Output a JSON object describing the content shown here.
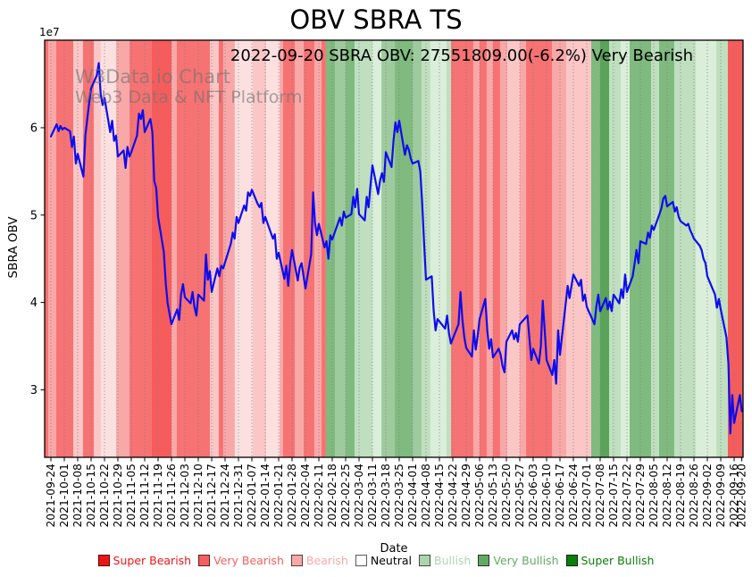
{
  "title": "OBV SBRA TS",
  "subtitle": "2022-09-20 SBRA OBV: 27551809.00(-6.2%) Very Bearish",
  "watermark": {
    "line1": "W3Data.io Chart",
    "line2": "Web3 Data & NFT Platform"
  },
  "y_axis": {
    "label": "SBRA OBV",
    "offset_label": "1e7",
    "ticks": [
      3,
      4,
      5,
      6
    ],
    "range": [
      2.23,
      7.0
    ]
  },
  "x_axis": {
    "label": "Date",
    "first_date": "2021-09-24",
    "tick_labels": [
      "2021-09-24",
      "2021-10-01",
      "2021-10-08",
      "2021-10-15",
      "2021-10-22",
      "2021-10-29",
      "2021-11-05",
      "2021-11-12",
      "2021-11-19",
      "2021-11-26",
      "2021-12-03",
      "2021-12-10",
      "2021-12-17",
      "2021-12-24",
      "2021-12-31",
      "2022-01-07",
      "2022-01-14",
      "2022-01-21",
      "2022-01-28",
      "2022-02-04",
      "2022-02-11",
      "2022-02-18",
      "2022-02-25",
      "2022-03-04",
      "2022-03-11",
      "2022-03-18",
      "2022-03-25",
      "2022-04-01",
      "2022-04-08",
      "2022-04-15",
      "2022-04-22",
      "2022-04-29",
      "2022-05-06",
      "2022-05-13",
      "2022-05-20",
      "2022-05-27",
      "2022-06-03",
      "2022-06-10",
      "2022-06-17",
      "2022-06-24",
      "2022-07-01",
      "2022-07-08",
      "2022-07-15",
      "2022-07-22",
      "2022-07-29",
      "2022-08-05",
      "2022-08-12",
      "2022-08-19",
      "2022-08-26",
      "2022-09-02",
      "2022-09-09",
      "2022-09-16",
      "2022-09-20"
    ]
  },
  "line_color": "#0d0dee",
  "grid_color": "#808080",
  "legend": [
    {
      "key": "super_bearish",
      "label": "Super Bearish",
      "color": "#ed1515",
      "text_color": "#ed1515"
    },
    {
      "key": "very_bearish",
      "label": "Very Bearish",
      "color": "#f55f5f",
      "text_color": "#f55f5f"
    },
    {
      "key": "bearish",
      "label": "Bearish",
      "color": "#f9a8a8",
      "text_color": "#f9a8a8"
    },
    {
      "key": "neutral",
      "label": "Neutral",
      "color": "#ffffff",
      "text_color": "#000000"
    },
    {
      "key": "bullish",
      "label": "Bullish",
      "color": "#aed4ae",
      "text_color": "#aed4ae"
    },
    {
      "key": "very_bullish",
      "label": "Very Bullish",
      "color": "#63a963",
      "text_color": "#63a963"
    },
    {
      "key": "super_bullish",
      "label": "Super Bullish",
      "color": "#0a7d0a",
      "text_color": "#0a7d0a"
    }
  ],
  "band_palette": {
    "vb": "#f77272",
    "vb2": "#f65c5c",
    "b": "#f9a8a8",
    "lp": "#fbc6c6",
    "vlp": "#fce0e0",
    "mg": "#7fba7f",
    "dg": "#5aa35a",
    "lmg": "#9ecb9e",
    "lg": "#bfdfbf",
    "vlg": "#daeeda"
  },
  "sentiment_bands_week_units": [
    [
      -0.47,
      -0.2,
      "vb"
    ],
    [
      -0.2,
      0.4,
      "b"
    ],
    [
      0.4,
      1.67,
      "vb"
    ],
    [
      1.67,
      2.4,
      "lp"
    ],
    [
      2.4,
      3.2,
      "vb"
    ],
    [
      3.2,
      3.73,
      "lp"
    ],
    [
      3.73,
      4.87,
      "vlp"
    ],
    [
      4.87,
      5.87,
      "b"
    ],
    [
      5.87,
      7.53,
      "vb"
    ],
    [
      7.53,
      9.0,
      "vb2"
    ],
    [
      9.0,
      9.4,
      "b"
    ],
    [
      9.4,
      11.87,
      "vb"
    ],
    [
      11.87,
      12.53,
      "lp"
    ],
    [
      12.53,
      12.87,
      "vb"
    ],
    [
      12.87,
      13.73,
      "b"
    ],
    [
      13.73,
      15.07,
      "vlp"
    ],
    [
      15.07,
      16.07,
      "lp"
    ],
    [
      16.07,
      17.07,
      "vlp"
    ],
    [
      17.07,
      17.33,
      "b"
    ],
    [
      17.33,
      18.2,
      "vb"
    ],
    [
      18.2,
      18.87,
      "b"
    ],
    [
      18.87,
      19.67,
      "vb"
    ],
    [
      19.67,
      20.2,
      "b"
    ],
    [
      20.2,
      20.53,
      "vb"
    ],
    [
      20.53,
      21.2,
      "mg"
    ],
    [
      21.2,
      22.0,
      "lmg"
    ],
    [
      22.0,
      22.67,
      "mg"
    ],
    [
      22.67,
      24.0,
      "lg"
    ],
    [
      24.0,
      24.67,
      "vlg"
    ],
    [
      24.67,
      25.67,
      "lmg"
    ],
    [
      25.67,
      27.0,
      "mg"
    ],
    [
      27.0,
      27.67,
      "lmg"
    ],
    [
      27.67,
      28.33,
      "lg"
    ],
    [
      28.33,
      29.53,
      "vlg"
    ],
    [
      29.53,
      29.87,
      "lg"
    ],
    [
      29.87,
      31.53,
      "vb"
    ],
    [
      31.53,
      32.0,
      "b"
    ],
    [
      32.0,
      32.53,
      "vb"
    ],
    [
      32.53,
      33.0,
      "b"
    ],
    [
      33.0,
      33.53,
      "vb"
    ],
    [
      33.53,
      34.07,
      "b"
    ],
    [
      34.07,
      35.0,
      "lp"
    ],
    [
      35.0,
      35.47,
      "b"
    ],
    [
      35.47,
      37.4,
      "vb"
    ],
    [
      37.4,
      38.47,
      "b"
    ],
    [
      38.47,
      40.33,
      "lp"
    ],
    [
      40.33,
      41.0,
      "mg"
    ],
    [
      41.0,
      41.67,
      "dg"
    ],
    [
      41.67,
      42.53,
      "lg"
    ],
    [
      42.53,
      43.2,
      "vlg"
    ],
    [
      43.2,
      44.8,
      "mg"
    ],
    [
      44.8,
      45.4,
      "lg"
    ],
    [
      45.4,
      46.53,
      "mg"
    ],
    [
      46.53,
      48.13,
      "lg"
    ],
    [
      48.13,
      49.67,
      "vlg"
    ],
    [
      49.67,
      50.53,
      "lg"
    ],
    [
      50.53,
      51.67,
      "vb2"
    ]
  ],
  "chart_data": {
    "type": "line",
    "series_name": "SBRA OBV",
    "value_unit": "1e7",
    "title": "OBV SBRA TS",
    "xlabel": "Date",
    "ylabel": "SBRA OBV",
    "ylim": [
      2.23,
      7.0
    ],
    "points": [
      [
        "2021-09-24",
        5.9
      ],
      [
        "2021-09-27",
        6.04
      ],
      [
        "2021-09-28",
        5.96
      ],
      [
        "2021-09-29",
        6.02
      ],
      [
        "2021-09-30",
        5.98
      ],
      [
        "2021-10-01",
        6.0
      ],
      [
        "2021-10-04",
        5.96
      ],
      [
        "2021-10-05",
        5.78
      ],
      [
        "2021-10-06",
        5.9
      ],
      [
        "2021-10-07",
        5.59
      ],
      [
        "2021-10-08",
        5.7
      ],
      [
        "2021-10-11",
        5.44
      ],
      [
        "2021-10-12",
        5.91
      ],
      [
        "2021-10-13",
        6.1
      ],
      [
        "2021-10-14",
        6.29
      ],
      [
        "2021-10-15",
        6.45
      ],
      [
        "2021-10-18",
        6.6
      ],
      [
        "2021-10-19",
        6.74
      ],
      [
        "2021-10-20",
        6.39
      ],
      [
        "2021-10-21",
        6.26
      ],
      [
        "2021-10-22",
        6.34
      ],
      [
        "2021-10-25",
        5.95
      ],
      [
        "2021-10-26",
        6.08
      ],
      [
        "2021-10-27",
        5.85
      ],
      [
        "2021-10-28",
        5.91
      ],
      [
        "2021-10-29",
        5.67
      ],
      [
        "2021-11-01",
        5.74
      ],
      [
        "2021-11-02",
        5.54
      ],
      [
        "2021-11-03",
        5.78
      ],
      [
        "2021-11-04",
        5.67
      ],
      [
        "2021-11-05",
        5.72
      ],
      [
        "2021-11-08",
        5.91
      ],
      [
        "2021-11-09",
        6.16
      ],
      [
        "2021-11-10",
        6.1
      ],
      [
        "2021-11-11",
        6.2
      ],
      [
        "2021-11-12",
        5.95
      ],
      [
        "2021-11-15",
        6.1
      ],
      [
        "2021-11-16",
        5.95
      ],
      [
        "2021-11-17",
        5.39
      ],
      [
        "2021-11-18",
        5.31
      ],
      [
        "2021-11-19",
        4.98
      ],
      [
        "2021-11-22",
        4.58
      ],
      [
        "2021-11-23",
        4.22
      ],
      [
        "2021-11-24",
        3.99
      ],
      [
        "2021-11-26",
        3.75
      ],
      [
        "2021-11-29",
        3.92
      ],
      [
        "2021-11-30",
        3.8
      ],
      [
        "2021-12-01",
        4.09
      ],
      [
        "2021-12-02",
        4.21
      ],
      [
        "2021-12-03",
        4.06
      ],
      [
        "2021-12-06",
        3.99
      ],
      [
        "2021-12-07",
        4.12
      ],
      [
        "2021-12-08",
        3.95
      ],
      [
        "2021-12-09",
        3.85
      ],
      [
        "2021-12-10",
        4.09
      ],
      [
        "2021-12-13",
        4.02
      ],
      [
        "2021-12-14",
        4.55
      ],
      [
        "2021-12-15",
        4.26
      ],
      [
        "2021-12-16",
        4.36
      ],
      [
        "2021-12-17",
        4.12
      ],
      [
        "2021-12-20",
        4.39
      ],
      [
        "2021-12-21",
        4.3
      ],
      [
        "2021-12-22",
        4.42
      ],
      [
        "2021-12-23",
        4.39
      ],
      [
        "2021-12-27",
        4.67
      ],
      [
        "2021-12-28",
        4.8
      ],
      [
        "2021-12-29",
        4.73
      ],
      [
        "2021-12-30",
        4.98
      ],
      [
        "2021-12-31",
        4.91
      ],
      [
        "2022-01-03",
        5.11
      ],
      [
        "2022-01-04",
        5.05
      ],
      [
        "2022-01-05",
        5.26
      ],
      [
        "2022-01-06",
        5.22
      ],
      [
        "2022-01-07",
        5.29
      ],
      [
        "2022-01-10",
        5.13
      ],
      [
        "2022-01-11",
        5.09
      ],
      [
        "2022-01-12",
        5.14
      ],
      [
        "2022-01-13",
        4.91
      ],
      [
        "2022-01-14",
        4.98
      ],
      [
        "2022-01-18",
        4.73
      ],
      [
        "2022-01-19",
        4.78
      ],
      [
        "2022-01-20",
        4.5
      ],
      [
        "2022-01-21",
        4.57
      ],
      [
        "2022-01-24",
        4.27
      ],
      [
        "2022-01-25",
        4.42
      ],
      [
        "2022-01-26",
        4.19
      ],
      [
        "2022-01-27",
        4.45
      ],
      [
        "2022-01-28",
        4.6
      ],
      [
        "2022-01-31",
        4.25
      ],
      [
        "2022-02-01",
        4.4
      ],
      [
        "2022-02-02",
        4.45
      ],
      [
        "2022-02-03",
        4.3
      ],
      [
        "2022-02-04",
        4.16
      ],
      [
        "2022-02-07",
        4.55
      ],
      [
        "2022-02-08",
        5.26
      ],
      [
        "2022-02-09",
        4.91
      ],
      [
        "2022-02-10",
        4.77
      ],
      [
        "2022-02-11",
        4.9
      ],
      [
        "2022-02-14",
        4.63
      ],
      [
        "2022-02-15",
        4.7
      ],
      [
        "2022-02-16",
        4.5
      ],
      [
        "2022-02-17",
        4.77
      ],
      [
        "2022-02-18",
        4.72
      ],
      [
        "2022-02-22",
        4.97
      ],
      [
        "2022-02-23",
        4.88
      ],
      [
        "2022-02-24",
        5.04
      ],
      [
        "2022-02-25",
        4.97
      ],
      [
        "2022-02-28",
        5.01
      ],
      [
        "2022-03-01",
        5.21
      ],
      [
        "2022-03-02",
        5.09
      ],
      [
        "2022-03-03",
        5.3
      ],
      [
        "2022-03-04",
        5.01
      ],
      [
        "2022-03-07",
        4.94
      ],
      [
        "2022-03-08",
        5.21
      ],
      [
        "2022-03-09",
        5.09
      ],
      [
        "2022-03-10",
        5.35
      ],
      [
        "2022-03-11",
        5.57
      ],
      [
        "2022-03-14",
        5.24
      ],
      [
        "2022-03-15",
        5.4
      ],
      [
        "2022-03-16",
        5.48
      ],
      [
        "2022-03-17",
        5.38
      ],
      [
        "2022-03-18",
        5.72
      ],
      [
        "2022-03-21",
        5.55
      ],
      [
        "2022-03-22",
        5.85
      ],
      [
        "2022-03-23",
        6.06
      ],
      [
        "2022-03-24",
        5.95
      ],
      [
        "2022-03-25",
        6.08
      ],
      [
        "2022-03-28",
        5.69
      ],
      [
        "2022-03-29",
        5.8
      ],
      [
        "2022-03-30",
        5.75
      ],
      [
        "2022-03-31",
        5.65
      ],
      [
        "2022-04-01",
        5.59
      ],
      [
        "2022-04-04",
        5.62
      ],
      [
        "2022-04-05",
        5.5
      ],
      [
        "2022-04-06",
        5.14
      ],
      [
        "2022-04-07",
        4.67
      ],
      [
        "2022-04-08",
        4.26
      ],
      [
        "2022-04-11",
        4.3
      ],
      [
        "2022-04-12",
        3.9
      ],
      [
        "2022-04-13",
        3.68
      ],
      [
        "2022-04-14",
        3.81
      ],
      [
        "2022-04-18",
        3.7
      ],
      [
        "2022-04-19",
        3.85
      ],
      [
        "2022-04-20",
        3.65
      ],
      [
        "2022-04-21",
        3.53
      ],
      [
        "2022-04-25",
        3.75
      ],
      [
        "2022-04-26",
        4.12
      ],
      [
        "2022-04-27",
        3.81
      ],
      [
        "2022-04-28",
        3.6
      ],
      [
        "2022-04-29",
        3.48
      ],
      [
        "2022-05-02",
        3.38
      ],
      [
        "2022-05-03",
        3.68
      ],
      [
        "2022-05-04",
        3.46
      ],
      [
        "2022-05-05",
        3.62
      ],
      [
        "2022-05-06",
        3.81
      ],
      [
        "2022-05-09",
        4.04
      ],
      [
        "2022-05-10",
        3.68
      ],
      [
        "2022-05-11",
        3.47
      ],
      [
        "2022-05-12",
        3.58
      ],
      [
        "2022-05-13",
        3.37
      ],
      [
        "2022-05-16",
        3.47
      ],
      [
        "2022-05-17",
        3.4
      ],
      [
        "2022-05-18",
        3.27
      ],
      [
        "2022-05-19",
        3.2
      ],
      [
        "2022-05-20",
        3.55
      ],
      [
        "2022-05-23",
        3.68
      ],
      [
        "2022-05-24",
        3.58
      ],
      [
        "2022-05-25",
        3.65
      ],
      [
        "2022-05-26",
        3.55
      ],
      [
        "2022-05-27",
        3.75
      ],
      [
        "2022-05-31",
        3.85
      ],
      [
        "2022-06-01",
        3.6
      ],
      [
        "2022-06-02",
        3.34
      ],
      [
        "2022-06-03",
        3.47
      ],
      [
        "2022-06-06",
        3.3
      ],
      [
        "2022-06-07",
        3.5
      ],
      [
        "2022-06-08",
        4.02
      ],
      [
        "2022-06-09",
        3.68
      ],
      [
        "2022-06-10",
        3.34
      ],
      [
        "2022-06-13",
        3.17
      ],
      [
        "2022-06-14",
        3.34
      ],
      [
        "2022-06-15",
        3.07
      ],
      [
        "2022-06-16",
        3.68
      ],
      [
        "2022-06-17",
        3.4
      ],
      [
        "2022-06-21",
        4.19
      ],
      [
        "2022-06-22",
        4.05
      ],
      [
        "2022-06-23",
        4.19
      ],
      [
        "2022-06-24",
        4.32
      ],
      [
        "2022-06-27",
        4.19
      ],
      [
        "2022-06-28",
        4.26
      ],
      [
        "2022-06-29",
        4.02
      ],
      [
        "2022-06-30",
        4.09
      ],
      [
        "2022-07-01",
        3.95
      ],
      [
        "2022-07-05",
        3.75
      ],
      [
        "2022-07-06",
        3.95
      ],
      [
        "2022-07-07",
        4.09
      ],
      [
        "2022-07-08",
        3.9
      ],
      [
        "2022-07-11",
        4.05
      ],
      [
        "2022-07-12",
        3.92
      ],
      [
        "2022-07-13",
        4.01
      ],
      [
        "2022-07-14",
        3.9
      ],
      [
        "2022-07-15",
        4.09
      ],
      [
        "2022-07-18",
        3.99
      ],
      [
        "2022-07-19",
        4.15
      ],
      [
        "2022-07-20",
        4.05
      ],
      [
        "2022-07-21",
        4.32
      ],
      [
        "2022-07-22",
        4.12
      ],
      [
        "2022-07-25",
        4.3
      ],
      [
        "2022-07-26",
        4.45
      ],
      [
        "2022-07-27",
        4.6
      ],
      [
        "2022-07-28",
        4.45
      ],
      [
        "2022-07-29",
        4.7
      ],
      [
        "2022-08-01",
        4.67
      ],
      [
        "2022-08-02",
        4.8
      ],
      [
        "2022-08-03",
        4.74
      ],
      [
        "2022-08-04",
        4.88
      ],
      [
        "2022-08-05",
        4.83
      ],
      [
        "2022-08-08",
        5.01
      ],
      [
        "2022-08-09",
        5.08
      ],
      [
        "2022-08-10",
        5.19
      ],
      [
        "2022-08-11",
        5.22
      ],
      [
        "2022-08-12",
        5.1
      ],
      [
        "2022-08-15",
        5.15
      ],
      [
        "2022-08-16",
        5.04
      ],
      [
        "2022-08-17",
        5.09
      ],
      [
        "2022-08-18",
        4.98
      ],
      [
        "2022-08-19",
        4.93
      ],
      [
        "2022-08-22",
        4.88
      ],
      [
        "2022-08-23",
        4.9
      ],
      [
        "2022-08-24",
        4.83
      ],
      [
        "2022-08-25",
        4.78
      ],
      [
        "2022-08-26",
        4.73
      ],
      [
        "2022-08-29",
        4.65
      ],
      [
        "2022-08-30",
        4.6
      ],
      [
        "2022-08-31",
        4.5
      ],
      [
        "2022-09-01",
        4.45
      ],
      [
        "2022-09-02",
        4.3
      ],
      [
        "2022-09-06",
        4.09
      ],
      [
        "2022-09-07",
        3.94
      ],
      [
        "2022-09-08",
        4.04
      ],
      [
        "2022-09-09",
        3.92
      ],
      [
        "2022-09-12",
        3.6
      ],
      [
        "2022-09-13",
        3.3
      ],
      [
        "2022-09-14",
        2.5
      ],
      [
        "2022-09-15",
        2.94
      ],
      [
        "2022-09-16",
        2.62
      ],
      [
        "2022-09-19",
        2.94
      ],
      [
        "2022-09-20",
        2.755
      ]
    ]
  }
}
